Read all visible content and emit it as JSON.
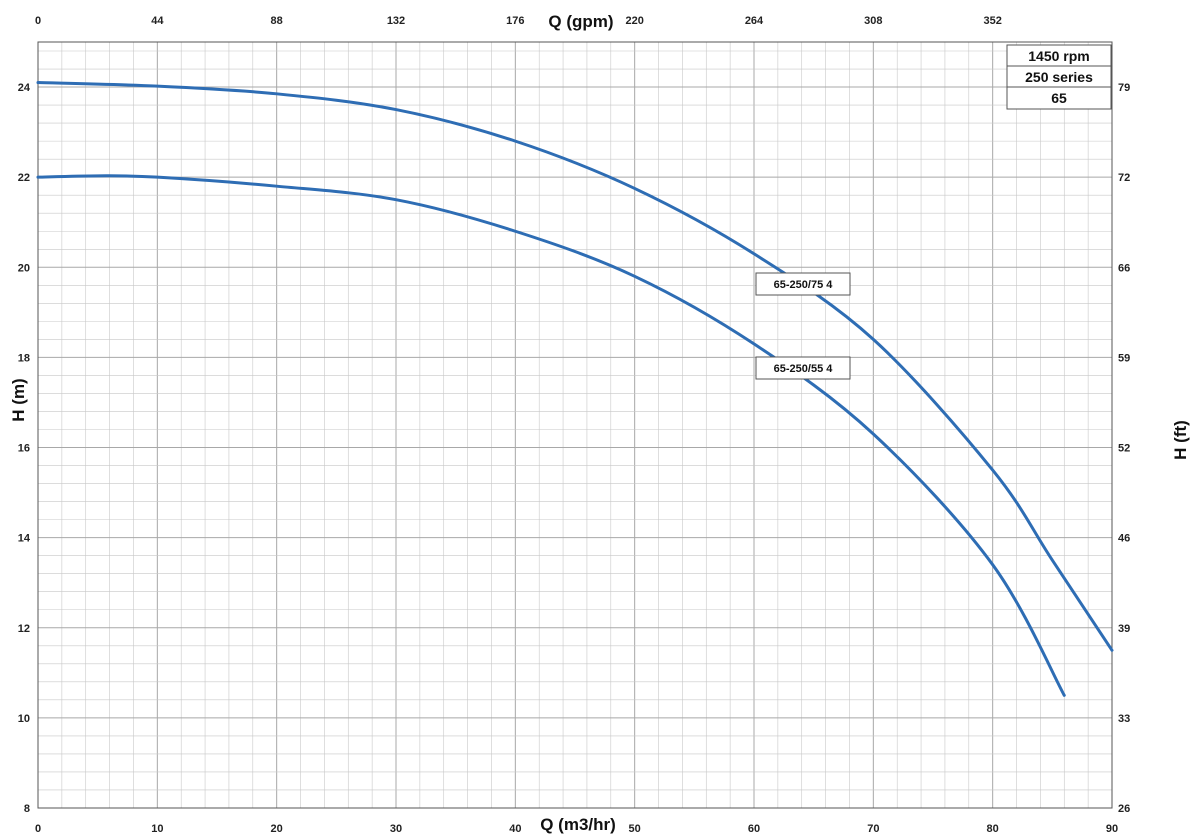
{
  "chart_data": {
    "type": "line",
    "xlabel_bottom": "Q (m3/hr)",
    "xlabel_top": "Q (gpm)",
    "ylabel_left": "H (m)",
    "ylabel_right": "H (ft)",
    "xlim": [
      0,
      90
    ],
    "ylim": [
      8,
      25
    ],
    "x_ticks_bottom": [
      "0",
      "10",
      "20",
      "30",
      "40",
      "50",
      "60",
      "70",
      "80",
      "90"
    ],
    "x_ticks_top": [
      "0",
      "44",
      "88",
      "132",
      "176",
      "220",
      "264",
      "308",
      "352"
    ],
    "y_ticks_left": [
      "24",
      "22",
      "20",
      "18",
      "16",
      "14",
      "12",
      "10",
      "8"
    ],
    "y_ticks_right": [
      "79",
      "72",
      "66",
      "59",
      "52",
      "46",
      "39",
      "33",
      "26"
    ],
    "grid": true,
    "info_box": [
      "1450 rpm",
      "250 series",
      "65"
    ],
    "series": [
      {
        "name": "65-250/75 4",
        "color": "#2e6db4",
        "points": [
          [
            0,
            24.1
          ],
          [
            10,
            24.02
          ],
          [
            20,
            23.85
          ],
          [
            30,
            23.5
          ],
          [
            40,
            22.8
          ],
          [
            50,
            21.75
          ],
          [
            60,
            20.3
          ],
          [
            70,
            18.4
          ],
          [
            80,
            15.5
          ],
          [
            85,
            13.5
          ],
          [
            90,
            11.5
          ]
        ]
      },
      {
        "name": "65-250/55 4",
        "color": "#2e6db4",
        "points": [
          [
            0,
            22.0
          ],
          [
            5,
            22.03
          ],
          [
            10,
            22.0
          ],
          [
            20,
            21.8
          ],
          [
            30,
            21.5
          ],
          [
            40,
            20.8
          ],
          [
            50,
            19.8
          ],
          [
            60,
            18.3
          ],
          [
            70,
            16.3
          ],
          [
            80,
            13.4
          ],
          [
            86,
            10.5
          ]
        ]
      }
    ],
    "annotations": [
      "65-250/75 4",
      "65-250/55 4"
    ]
  },
  "colors": {
    "grid": "#c8c8c8",
    "axis": "#555555",
    "line": "#2e6db4"
  }
}
